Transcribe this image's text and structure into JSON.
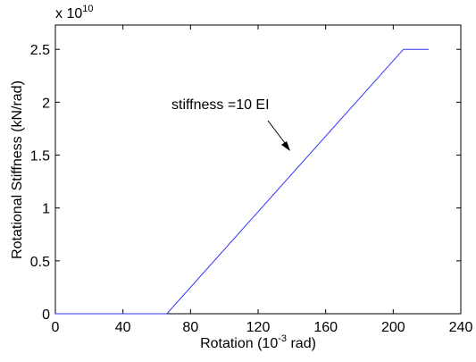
{
  "chart_data": {
    "type": "line",
    "xlabel": [
      "Rotation (10",
      "-3",
      " rad)"
    ],
    "ylabel": "Rotational Stiffness (kN/rad)",
    "y_multiplier": [
      "x 10",
      "10"
    ],
    "annotation": "stiffness =10 EI",
    "x": [
      0,
      66,
      206,
      221
    ],
    "series": [
      {
        "color": "#3333ff",
        "values": [
          0,
          0,
          2.5,
          2.5
        ]
      }
    ],
    "xlim": [
      0,
      240
    ],
    "xticks": [
      0,
      40,
      80,
      120,
      160,
      200,
      240
    ],
    "ylim": [
      0,
      2.73
    ],
    "yticks": [
      0,
      0.5,
      1,
      1.5,
      2,
      2.5
    ]
  }
}
